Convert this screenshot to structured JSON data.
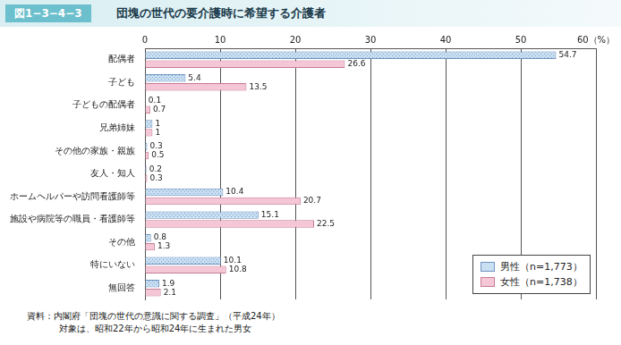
{
  "header": {
    "figure_number": "図1−3−4−3"
  },
  "chart_data": {
    "type": "bar",
    "orientation": "horizontal",
    "title": "団塊の世代の要介護時に希望する介護者",
    "categories": [
      "配偶者",
      "子ども",
      "子どもの配偶者",
      "兄弟姉妹",
      "その他の家族・親族",
      "友人・知人",
      "ホームヘルパーや訪問看護師等",
      "施設や病院等の職員・看護師等",
      "その他",
      "特にいない",
      "無回答"
    ],
    "series": [
      {
        "name": "男性（n=1,773）",
        "color": "#c9e0f2",
        "values": [
          54.7,
          5.4,
          0.1,
          1,
          0.3,
          0.2,
          10.4,
          15.1,
          0.8,
          10.1,
          1.9
        ]
      },
      {
        "name": "女性（n=1,738）",
        "color": "#f5c6d5",
        "values": [
          26.6,
          13.5,
          0.7,
          1,
          0.5,
          0.3,
          20.7,
          22.5,
          1.3,
          10.8,
          2.1
        ]
      }
    ],
    "xlim": [
      0,
      60
    ],
    "xticks": [
      0,
      10,
      20,
      30,
      40,
      50,
      {
        "value": 60,
        "label": "60（%）"
      }
    ],
    "grid": true,
    "legend": "lower right",
    "data_labels": true,
    "annotations": [
      "資料：内閣府「団塊の世代の意識に関する調査」（平成24年）",
      "対象は、昭和22年から昭和24年に生まれた男女"
    ]
  }
}
